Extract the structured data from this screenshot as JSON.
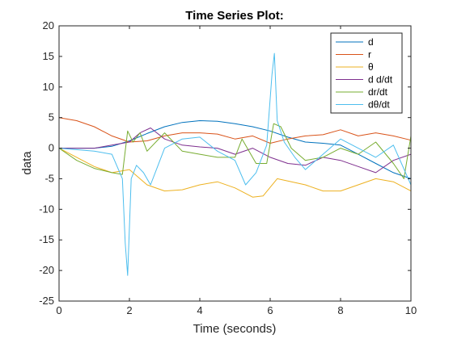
{
  "chart_data": {
    "type": "line",
    "title": "Time Series Plot:",
    "xlabel": "Time (seconds)",
    "ylabel": "data",
    "xlim": [
      0,
      10
    ],
    "ylim": [
      -25,
      20
    ],
    "xticks": [
      0,
      2,
      4,
      6,
      8,
      10
    ],
    "yticks": [
      -25,
      -20,
      -15,
      -10,
      -5,
      0,
      5,
      10,
      15,
      20
    ],
    "grid": false,
    "legend_position": "top-right",
    "series": [
      {
        "name": "d",
        "color": "#0072BD",
        "x": [
          0,
          1,
          1.5,
          2,
          2.5,
          3,
          3.5,
          4,
          4.5,
          5,
          5.5,
          6,
          6.5,
          7,
          7.5,
          8,
          8.5,
          9,
          9.5,
          10
        ],
        "y": [
          0,
          0,
          0.3,
          1.2,
          2.4,
          3.5,
          4.2,
          4.5,
          4.4,
          4.0,
          3.5,
          2.8,
          1.8,
          1.0,
          0.8,
          0.5,
          -1.0,
          -2.5,
          -4.0,
          -5.0
        ]
      },
      {
        "name": "r",
        "color": "#D95319",
        "x": [
          0,
          0.5,
          1,
          1.5,
          2,
          2.5,
          3,
          3.5,
          4,
          4.5,
          5,
          5.5,
          6,
          6.5,
          7,
          7.5,
          8,
          8.5,
          9,
          9.5,
          10
        ],
        "y": [
          5.0,
          4.5,
          3.5,
          2.0,
          1.0,
          1.2,
          2.0,
          2.5,
          2.5,
          2.3,
          1.5,
          2.0,
          0.8,
          1.5,
          2.0,
          2.2,
          3.0,
          2.0,
          2.5,
          2.0,
          1.3
        ]
      },
      {
        "name": "θ",
        "color": "#EDB120",
        "x": [
          0,
          0.5,
          1,
          1.5,
          2,
          2.5,
          3,
          3.5,
          4,
          4.5,
          5,
          5.5,
          5.8,
          6.2,
          7,
          7.5,
          8,
          8.5,
          9,
          9.5,
          10
        ],
        "y": [
          0,
          -1.5,
          -3.0,
          -4.0,
          -3.5,
          -6.0,
          -7.0,
          -6.8,
          -6.0,
          -5.5,
          -6.5,
          -8.0,
          -7.8,
          -5.0,
          -6.0,
          -7.0,
          -7.0,
          -6.0,
          -5.0,
          -5.5,
          -7.0
        ]
      },
      {
        "name": "d d/dt",
        "color": "#7E2F8E",
        "x": [
          0,
          1,
          1.5,
          2,
          2.3,
          2.6,
          3,
          3.5,
          4,
          4.5,
          5,
          5.5,
          6,
          6.5,
          7,
          7.5,
          8,
          8.5,
          9,
          9.5,
          10
        ],
        "y": [
          0,
          0,
          0.5,
          1.0,
          2.5,
          3.3,
          1.5,
          0.5,
          0.2,
          0.0,
          -1.0,
          0.0,
          -1.5,
          -2.5,
          -2.8,
          -1.5,
          -2.0,
          -3.0,
          -4.0,
          -2.0,
          -1.0
        ]
      },
      {
        "name": "dr/dt",
        "color": "#77AC30",
        "x": [
          0,
          0.5,
          1,
          1.5,
          1.8,
          1.95,
          2.1,
          2.3,
          2.5,
          3.0,
          3.5,
          4.0,
          4.5,
          5.0,
          5.2,
          5.6,
          5.9,
          6.1,
          6.3,
          6.6,
          7.0,
          7.5,
          8.0,
          8.5,
          9.0,
          9.5,
          9.8,
          10.0
        ],
        "y": [
          0,
          -2.0,
          -3.3,
          -4.0,
          -4.3,
          2.8,
          1.0,
          2.5,
          -0.5,
          2.5,
          -0.5,
          -1.0,
          -1.5,
          -1.5,
          1.5,
          -2.5,
          -2.5,
          4.0,
          3.5,
          0.0,
          -2.0,
          -1.5,
          0.0,
          -1.0,
          1.0,
          -2.5,
          -5.0,
          2.0
        ]
      },
      {
        "name": "dθ/dt",
        "color": "#4DBEEE",
        "x": [
          0,
          1,
          1.5,
          1.8,
          1.88,
          1.95,
          2.05,
          2.2,
          2.4,
          2.6,
          2.8,
          3.0,
          3.5,
          4.0,
          4.5,
          5.0,
          5.3,
          5.6,
          5.9,
          6.05,
          6.12,
          6.2,
          6.4,
          6.7,
          7.0,
          7.5,
          8.0,
          8.5,
          9.0,
          9.5,
          10.0
        ],
        "y": [
          0,
          -0.5,
          -1.0,
          -5.0,
          -15.5,
          -20.8,
          -5.0,
          -2.8,
          -4.0,
          -6.0,
          -3.0,
          0.0,
          1.5,
          1.8,
          -0.5,
          -2.0,
          -6.0,
          -4.0,
          0.5,
          12.0,
          15.5,
          4.5,
          1.0,
          -1.5,
          -3.5,
          -1.0,
          1.5,
          0.0,
          -1.5,
          0.5,
          -6.0
        ]
      }
    ]
  }
}
